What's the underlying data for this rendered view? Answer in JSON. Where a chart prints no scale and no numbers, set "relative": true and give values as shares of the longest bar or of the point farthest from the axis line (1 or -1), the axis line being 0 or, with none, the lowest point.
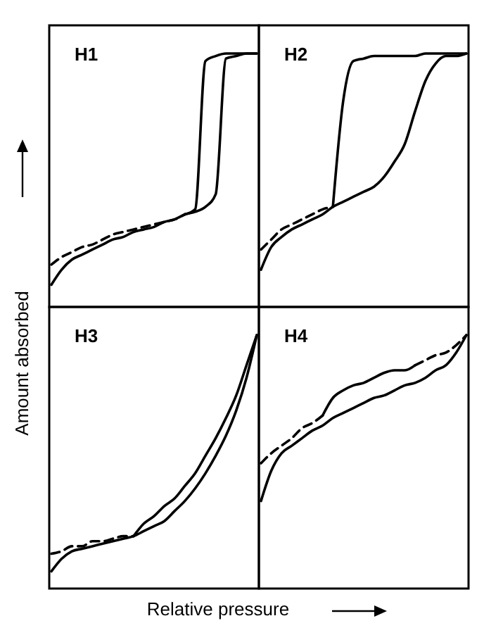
{
  "chart_data": [
    {
      "type": "line",
      "title": "H1",
      "ylabel": "Amount absorbed",
      "relative": true,
      "categories": [
        null,
        null,
        null,
        null,
        null,
        null,
        null,
        null,
        null,
        null,
        null,
        null,
        null,
        null,
        null,
        null,
        null,
        null,
        null,
        null,
        null
      ],
      "series": [
        {
          "color": "#000000",
          "line_style": "solid",
          "values": [
            0.08,
            0.14,
            0.18,
            0.2,
            0.22,
            0.24,
            0.26,
            0.27,
            0.29,
            0.3,
            0.31,
            0.33,
            0.34,
            0.36,
            0.37,
            0.39,
            0.44,
            0.98,
            0.99,
            1,
            1
          ]
        },
        {
          "color": "#000000",
          "line_style": "solid",
          "values": [
            null,
            null,
            null,
            null,
            null,
            null,
            null,
            null,
            null,
            null,
            null,
            null,
            null,
            0.36,
            0.38,
            0.97,
            0.99,
            1,
            1,
            1,
            1
          ]
        },
        {
          "color": "#000000",
          "line_style": "dashed",
          "values": [
            0.16,
            0.19,
            0.21,
            0.23,
            0.24,
            0.26,
            0.28,
            0.29,
            0.3,
            0.31,
            0.32,
            0.33,
            0.34,
            0.36,
            null,
            null,
            null,
            null,
            null,
            null,
            null
          ]
        }
      ]
    },
    {
      "type": "line",
      "title": "H2",
      "relative": true,
      "categories": [
        null,
        null,
        null,
        null,
        null,
        null,
        null,
        null,
        null,
        null,
        null,
        null,
        null,
        null,
        null,
        null,
        null,
        null,
        null,
        null,
        null
      ],
      "series": [
        {
          "color": "#000000",
          "line_style": "solid",
          "values": [
            0.14,
            0.23,
            0.27,
            0.3,
            0.32,
            0.34,
            0.36,
            0.39,
            0.41,
            0.43,
            0.45,
            0.47,
            0.51,
            0.57,
            0.64,
            0.77,
            0.89,
            0.96,
            0.99,
            0.99,
            1
          ]
        },
        {
          "color": "#000000",
          "line_style": "solid",
          "values": [
            null,
            null,
            null,
            null,
            null,
            null,
            null,
            0.39,
            0.81,
            0.97,
            0.98,
            0.99,
            0.99,
            0.99,
            0.99,
            0.99,
            1,
            1,
            1,
            1,
            1
          ]
        },
        {
          "color": "#000000",
          "line_style": "dashed",
          "values": [
            0.22,
            0.26,
            0.3,
            0.32,
            0.34,
            0.36,
            0.38,
            0.39,
            null,
            null,
            null,
            null,
            null,
            null,
            null,
            null,
            null,
            null,
            null,
            null,
            null
          ]
        }
      ]
    },
    {
      "type": "line",
      "title": "H3",
      "xlabel": "Relative pressure",
      "relative": true,
      "categories": [
        null,
        null,
        null,
        null,
        null,
        null,
        null,
        null,
        null,
        null,
        null,
        null,
        null,
        null,
        null,
        null,
        null,
        null,
        null,
        null,
        null
      ],
      "series": [
        {
          "color": "#000000",
          "line_style": "solid",
          "values": [
            0.06,
            0.11,
            0.14,
            0.15,
            0.16,
            0.17,
            0.18,
            0.19,
            0.2,
            0.22,
            0.24,
            0.26,
            0.3,
            0.34,
            0.39,
            0.45,
            0.52,
            0.6,
            0.7,
            0.83,
            1
          ]
        },
        {
          "color": "#000000",
          "line_style": "solid",
          "values": [
            null,
            null,
            null,
            null,
            null,
            null,
            null,
            null,
            0.2,
            0.25,
            0.28,
            0.32,
            0.35,
            0.4,
            0.45,
            0.52,
            0.59,
            0.67,
            0.76,
            0.88,
            1
          ]
        },
        {
          "color": "#000000",
          "line_style": "dashed",
          "values": [
            0.13,
            0.14,
            0.16,
            0.16,
            0.18,
            0.18,
            0.19,
            0.2,
            0.2,
            null,
            null,
            null,
            null,
            null,
            null,
            null,
            null,
            null,
            null,
            null,
            null
          ]
        }
      ]
    },
    {
      "type": "line",
      "title": "H4",
      "relative": true,
      "categories": [
        null,
        null,
        null,
        null,
        null,
        null,
        null,
        null,
        null,
        null,
        null,
        null,
        null,
        null,
        null,
        null,
        null,
        null,
        null,
        null,
        null
      ],
      "series": [
        {
          "color": "#000000",
          "line_style": "solid",
          "values": [
            0.34,
            0.46,
            0.53,
            0.56,
            0.59,
            0.62,
            0.64,
            0.67,
            0.69,
            0.71,
            0.73,
            0.75,
            0.76,
            0.78,
            0.8,
            0.81,
            0.83,
            0.86,
            0.88,
            0.93,
            1
          ]
        },
        {
          "color": "#000000",
          "line_style": "solid",
          "values": [
            null,
            null,
            null,
            null,
            null,
            null,
            0.68,
            0.75,
            0.78,
            0.8,
            0.81,
            0.83,
            0.85,
            0.86,
            0.86,
            0.88,
            null,
            null,
            null,
            null,
            null
          ]
        },
        {
          "color": "#000000",
          "line_style": "dashed",
          "values": [
            0.49,
            0.53,
            0.56,
            0.59,
            0.63,
            0.65,
            0.68,
            null,
            null,
            null,
            null,
            null,
            null,
            null,
            null,
            0.88,
            0.9,
            0.92,
            0.93,
            0.96,
            1
          ]
        }
      ]
    }
  ]
}
